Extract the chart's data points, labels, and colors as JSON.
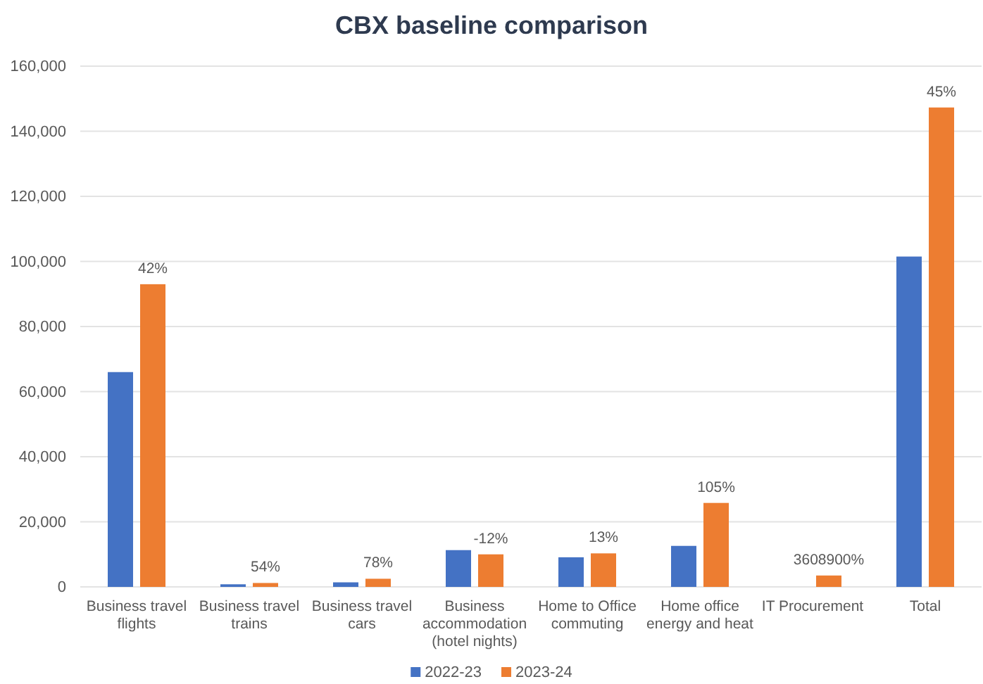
{
  "chart_data": {
    "type": "bar",
    "title": "CBX baseline comparison",
    "categories": [
      "Business travel flights",
      "Business travel trains",
      "Business travel cars",
      "Business accommodation (hotel nights)",
      "Home to Office commuting",
      "Home office energy and heat",
      "IT Procurement",
      "Total"
    ],
    "series": [
      {
        "name": "2022-23",
        "color": "#4472c4",
        "values": [
          66000,
          800,
          1400,
          11300,
          9100,
          12600,
          0,
          101500
        ]
      },
      {
        "name": "2023-24",
        "color": "#ed7d31",
        "values": [
          93000,
          1200,
          2500,
          10000,
          10300,
          25800,
          3500,
          147300
        ]
      }
    ],
    "annotations": [
      {
        "text": "42%",
        "x": "Business travel flights",
        "y": 93000
      },
      {
        "text": "54%",
        "x": "Business travel trains",
        "y": 1200
      },
      {
        "text": "78%",
        "x": "Business travel cars",
        "y": 2500
      },
      {
        "text": "-12%",
        "x": "Business accommodation (hotel nights)",
        "y": 10000
      },
      {
        "text": "13%",
        "x": "Home to Office commuting",
        "y": 10300
      },
      {
        "text": "105%",
        "x": "Home office energy and heat",
        "y": 25800
      },
      {
        "text": "3608900%",
        "x": "IT Procurement",
        "y": 3500
      },
      {
        "text": "45%",
        "x": "Total",
        "y": 147300
      }
    ],
    "ylim": [
      0,
      160000
    ],
    "yticks": [
      0,
      {
        "value": 20000,
        "label": "20,000"
      },
      {
        "value": 40000,
        "label": "40,000"
      },
      {
        "value": 60000,
        "label": "60,000"
      },
      {
        "value": 80000,
        "label": "80,000"
      },
      {
        "value": 100000,
        "label": "100,000"
      },
      {
        "value": 120000,
        "label": "120,000"
      },
      {
        "value": 140000,
        "label": "140,000"
      },
      {
        "value": 160000,
        "label": "160,000"
      }
    ],
    "grid": "y",
    "legend": "bottom"
  }
}
